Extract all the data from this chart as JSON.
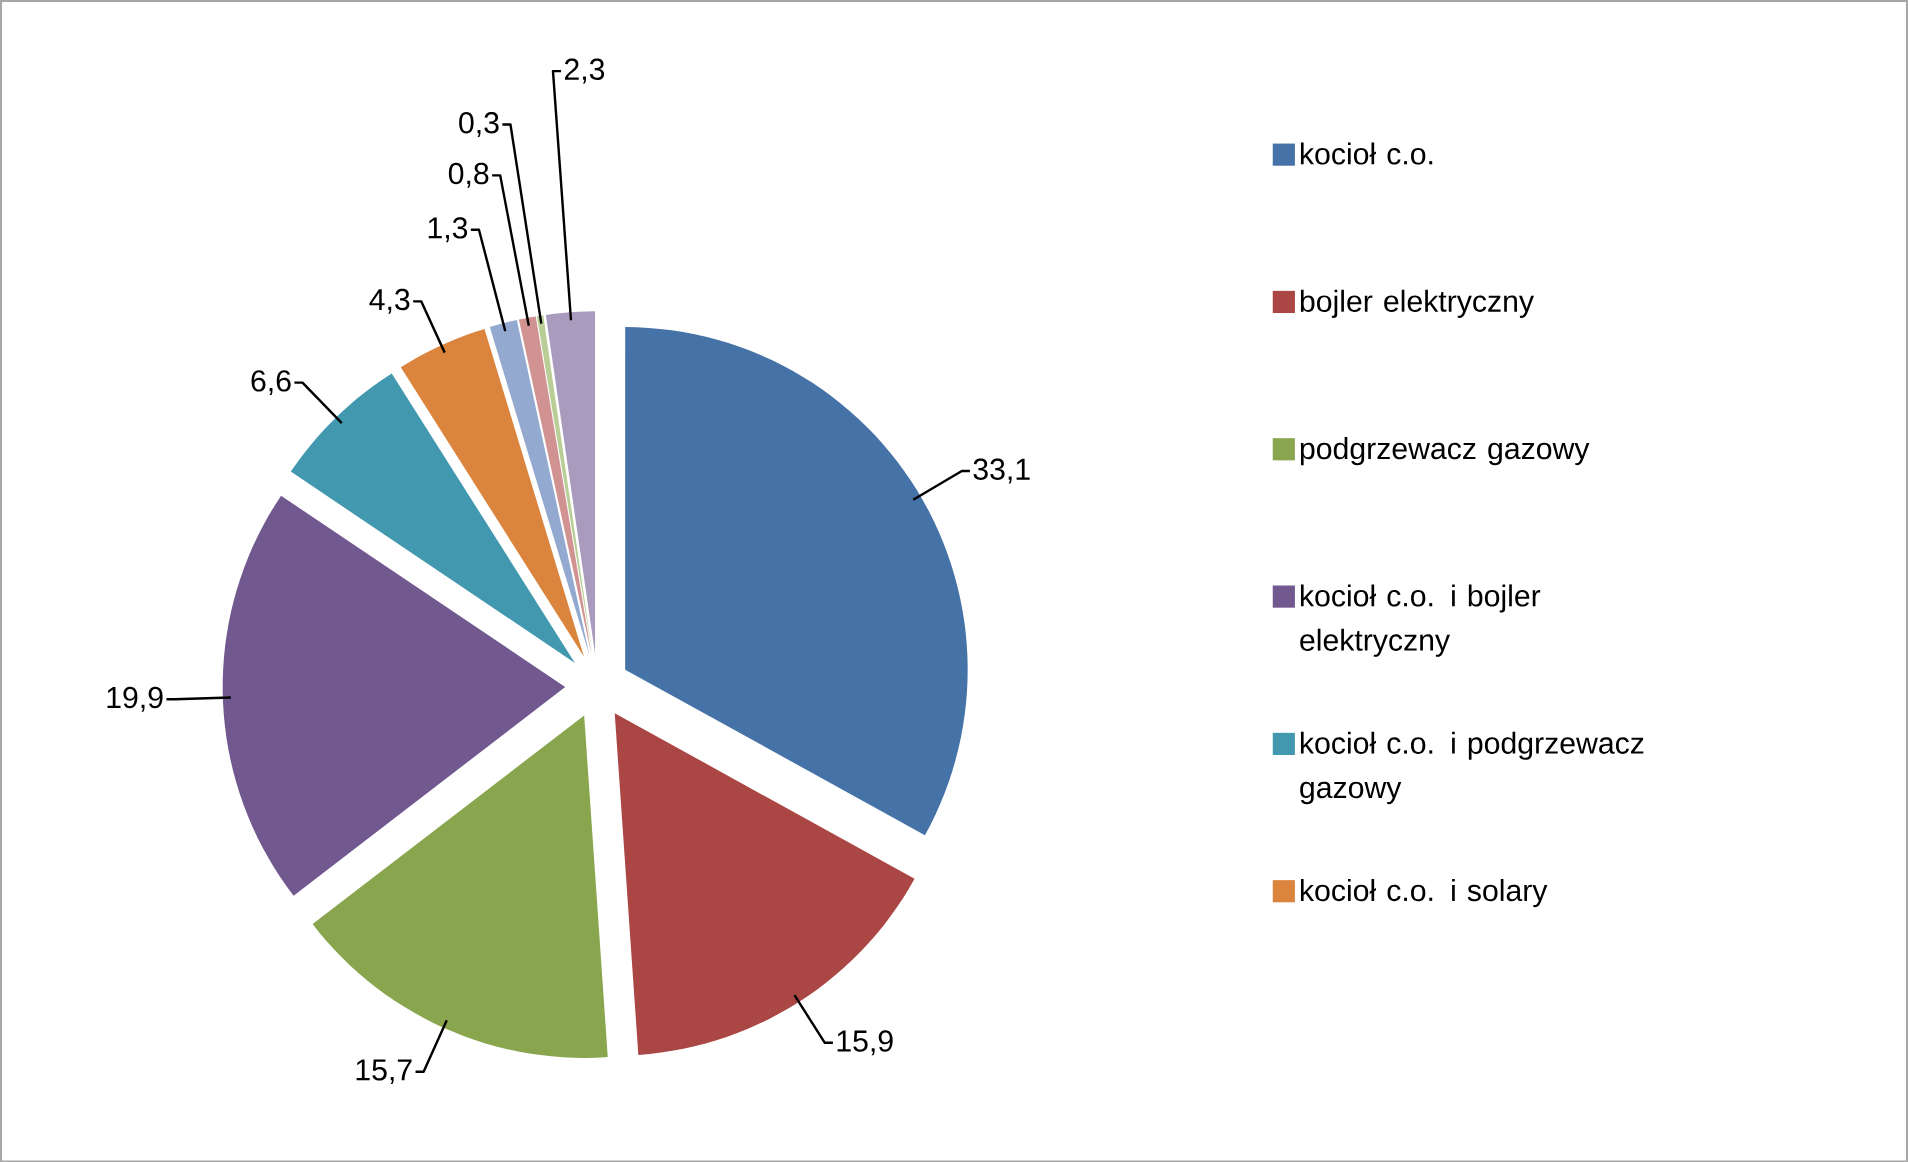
{
  "chart_data": {
    "type": "pie",
    "categories": [
      "kocioł c.o.",
      "bojler elektryczny",
      "podgrzewacz gazowy",
      "kocioł c.o. i bojler elektryczny",
      "kocioł c.o. i podgrzewacz gazowy",
      "kocioł c.o. i solary",
      null,
      null,
      null,
      null
    ],
    "values": [
      33.1,
      15.9,
      15.7,
      19.9,
      6.6,
      4.3,
      1.3,
      0.8,
      0.3,
      2.3
    ],
    "value_labels": [
      "33,1",
      "15,9",
      "15,7",
      "19,9",
      "6,6",
      "4,3",
      "1,3",
      "0,8",
      "0,3",
      "2,3"
    ],
    "colors": [
      "#4572a7",
      "#aa4643",
      "#89a54e",
      "#71588f",
      "#4198af",
      "#db843d",
      "#93a9cf",
      "#d19392",
      "#b9cd96",
      "#a99bbd"
    ],
    "legend": "right"
  }
}
